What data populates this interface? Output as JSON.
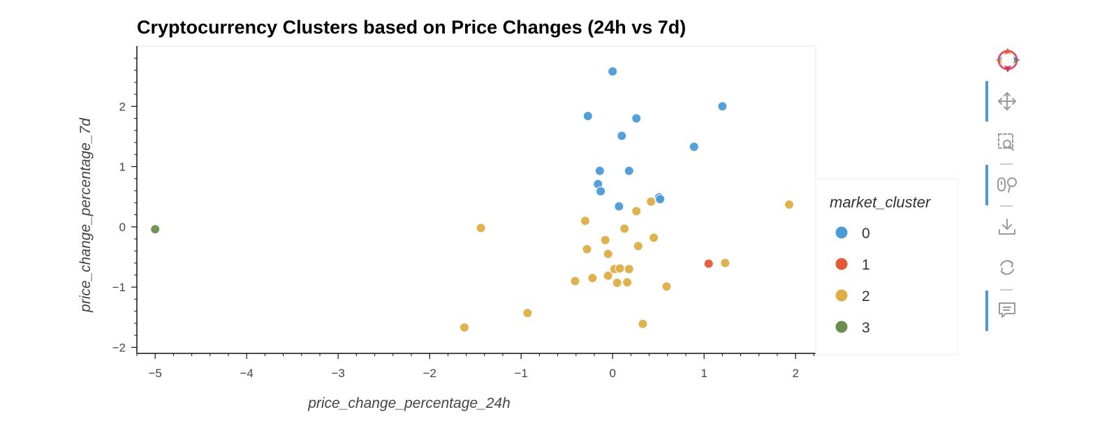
{
  "chart_data": {
    "type": "scatter",
    "title": "Cryptocurrency Clusters based on Price Changes (24h vs 7d)",
    "xlabel": "price_change_percentage_24h",
    "ylabel": "price_change_percentage_7d",
    "xlim": [
      -5.2,
      2.22
    ],
    "ylim": [
      -2.1,
      3.0
    ],
    "xticks": [
      -5,
      -4,
      -3,
      -2,
      -1,
      0,
      1,
      2
    ],
    "yticks": [
      -2,
      -1,
      0,
      1,
      2
    ],
    "legend": {
      "title": "market_cluster",
      "placement": "right"
    },
    "series": [
      {
        "name": "0",
        "color": "#4C9BD6",
        "points": [
          [
            0.0,
            2.58
          ],
          [
            -0.27,
            1.84
          ],
          [
            0.26,
            1.8
          ],
          [
            1.2,
            2.0
          ],
          [
            0.1,
            1.51
          ],
          [
            0.89,
            1.33
          ],
          [
            -0.14,
            0.93
          ],
          [
            0.18,
            0.93
          ],
          [
            -0.16,
            0.71
          ],
          [
            -0.13,
            0.59
          ],
          [
            0.51,
            0.49
          ],
          [
            0.52,
            0.46
          ],
          [
            0.07,
            0.34
          ]
        ]
      },
      {
        "name": "1",
        "color": "#E45A38",
        "points": [
          [
            1.05,
            -0.61
          ]
        ]
      },
      {
        "name": "2",
        "color": "#DDAE47",
        "points": [
          [
            1.93,
            0.37
          ],
          [
            0.42,
            0.42
          ],
          [
            0.26,
            0.26
          ],
          [
            -0.3,
            0.1
          ],
          [
            0.13,
            -0.03
          ],
          [
            -1.44,
            -0.02
          ],
          [
            -0.08,
            -0.22
          ],
          [
            0.45,
            -0.18
          ],
          [
            0.28,
            -0.32
          ],
          [
            -0.28,
            -0.37
          ],
          [
            -0.05,
            -0.45
          ],
          [
            1.23,
            -0.6
          ],
          [
            0.02,
            -0.7
          ],
          [
            0.08,
            -0.69
          ],
          [
            0.18,
            -0.7
          ],
          [
            -0.05,
            -0.81
          ],
          [
            -0.22,
            -0.85
          ],
          [
            -0.41,
            -0.9
          ],
          [
            0.05,
            -0.93
          ],
          [
            0.16,
            -0.92
          ],
          [
            0.59,
            -0.99
          ],
          [
            -0.93,
            -1.43
          ],
          [
            0.33,
            -1.61
          ],
          [
            -1.62,
            -1.67
          ]
        ]
      },
      {
        "name": "3",
        "color": "#6B8E4E",
        "points": [
          [
            -5.0,
            -0.04
          ]
        ]
      }
    ]
  },
  "toolbar": {
    "tools": [
      "bokeh-logo-icon",
      "pan-icon",
      "box-zoom-icon",
      "wheel-zoom-icon",
      "save-icon",
      "reset-icon",
      "hover-icon"
    ]
  }
}
